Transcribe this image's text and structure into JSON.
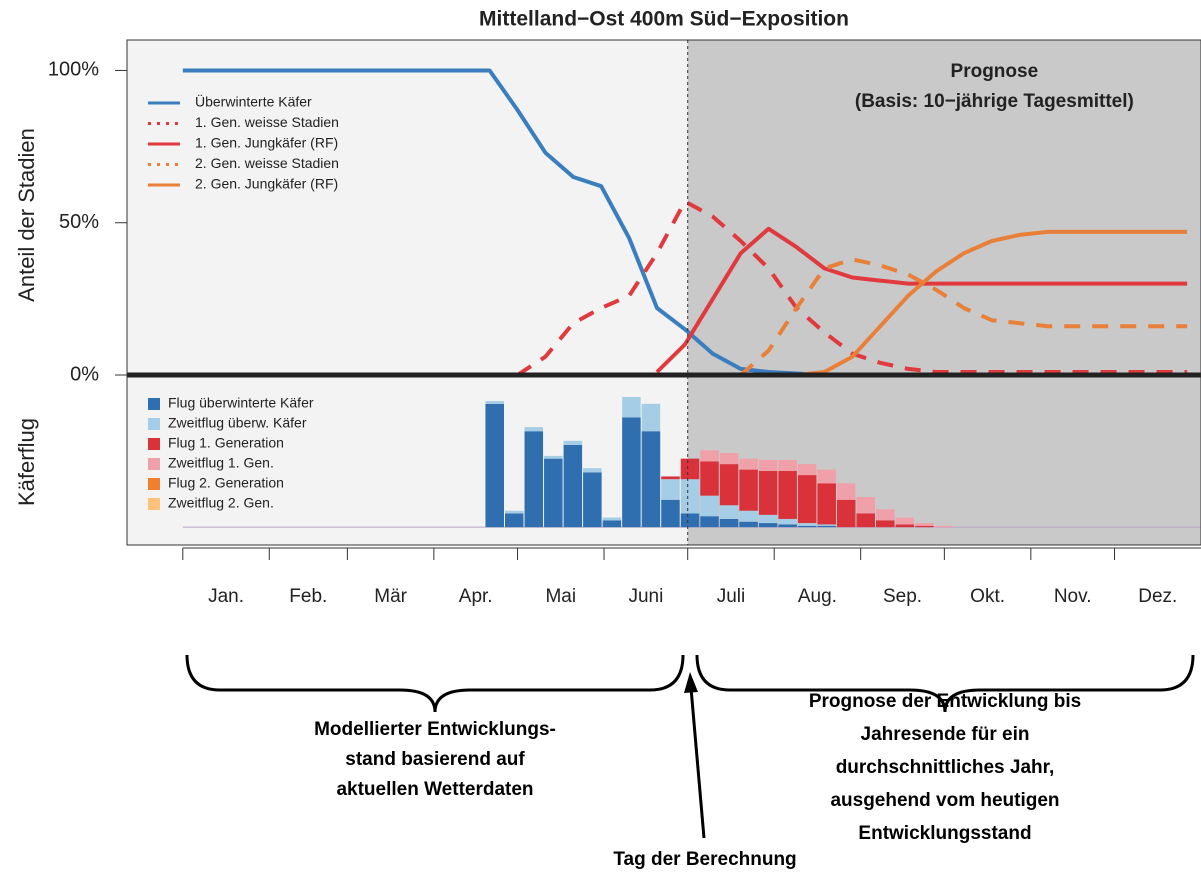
{
  "chart_data": {
    "type": "line",
    "title": "Mittelland−Ost 400m Süd−Exposition",
    "ylabel": "Anteil der Stadien",
    "ylabel2": "Käferflug",
    "forecast_title": "Prognose",
    "forecast_subtitle": "(Basis: 10−jährige Tagesmittel)",
    "today": 181,
    "xlim": [
      -20,
      365
    ],
    "xticks": [
      0,
      31,
      59,
      90,
      120,
      151,
      181,
      212,
      243,
      273,
      304,
      334
    ],
    "categories": [
      "Jan.",
      "Feb.",
      "Mär",
      "Apr.",
      "Mai",
      "Juni",
      "Juli",
      "Aug.",
      "Sep.",
      "Okt.",
      "Nov.",
      "Dez."
    ],
    "ylim": [
      0,
      110
    ],
    "yticks": [
      {
        "value": 0,
        "label": "0%"
      },
      {
        "value": 50,
        "label": "50%"
      },
      {
        "value": 100,
        "label": "100%"
      }
    ],
    "x": [
      0,
      10,
      20,
      30,
      40,
      50,
      60,
      70,
      80,
      90,
      100,
      110,
      120,
      130,
      140,
      150,
      160,
      170,
      180,
      190,
      200,
      210,
      220,
      230,
      240,
      250,
      260,
      270,
      280,
      290,
      300,
      310,
      320,
      330,
      340,
      350,
      360
    ],
    "series": [
      {
        "name": "Überwinterte Käfer",
        "color": "#3a7ebf",
        "style": "solid",
        "values": [
          100,
          100,
          100,
          100,
          100,
          100,
          100,
          100,
          100,
          100,
          100,
          100,
          87,
          73,
          65,
          62,
          45,
          22,
          15,
          7,
          2,
          1,
          0.5,
          0,
          0,
          0,
          0,
          0,
          0,
          0,
          0,
          0,
          0,
          0,
          0,
          0,
          0
        ]
      },
      {
        "name": "1. Gen. weisse Stadien",
        "color": "#e0393e",
        "style": "dashed",
        "values": [
          null,
          null,
          null,
          null,
          null,
          null,
          null,
          null,
          null,
          null,
          null,
          null,
          0,
          6,
          17,
          22,
          26,
          40,
          57,
          52,
          44,
          35,
          22,
          14,
          7,
          4,
          2,
          1,
          1,
          1,
          1,
          1,
          1,
          1,
          1,
          1,
          1
        ]
      },
      {
        "name": "1. Gen. Jungkäfer (RF)",
        "color": "#e0393e",
        "style": "solid",
        "values": [
          null,
          null,
          null,
          null,
          null,
          null,
          null,
          null,
          null,
          null,
          null,
          null,
          null,
          null,
          null,
          null,
          null,
          1,
          10,
          25,
          40,
          48,
          42,
          35,
          32,
          31,
          30,
          30,
          30,
          30,
          30,
          30,
          30,
          30,
          30,
          30,
          30
        ]
      },
      {
        "name": "2. Gen. weisse Stadien",
        "color": "#e8803a",
        "style": "dashed",
        "values": [
          null,
          null,
          null,
          null,
          null,
          null,
          null,
          null,
          null,
          null,
          null,
          null,
          null,
          null,
          null,
          null,
          null,
          null,
          null,
          null,
          0,
          8,
          22,
          35,
          38,
          36,
          33,
          28,
          22,
          18,
          17,
          16,
          16,
          16,
          16,
          16,
          16
        ]
      },
      {
        "name": "2. Gen. Jungkäfer (RF)",
        "color": "#e8803a",
        "style": "solid",
        "values": [
          null,
          null,
          null,
          null,
          null,
          null,
          null,
          null,
          null,
          null,
          null,
          null,
          null,
          null,
          null,
          null,
          null,
          null,
          null,
          null,
          null,
          null,
          0,
          1,
          6,
          16,
          26,
          34,
          40,
          44,
          46,
          47,
          47,
          47,
          47,
          47,
          47
        ]
      }
    ],
    "flight": {
      "type": "bar",
      "ylim": [
        -13,
        111
      ],
      "x": [
        112,
        119,
        126,
        133,
        140,
        147,
        154,
        161,
        168,
        175,
        182,
        189,
        196,
        203,
        210,
        217,
        224,
        231,
        238,
        245,
        252,
        259,
        266,
        273,
        280
      ],
      "series": [
        {
          "name": "Flug überwinterte Käfer",
          "color": "#2f6fb0",
          "values": [
            90,
            10,
            70,
            50,
            60,
            40,
            5,
            80,
            70,
            20,
            10,
            8,
            6,
            4,
            3,
            2,
            1,
            1,
            0,
            0,
            0,
            0,
            0,
            0,
            0
          ]
        },
        {
          "name": "Zweitflug überw. Käfer",
          "color": "#a6cde6",
          "values": [
            2,
            2,
            3,
            2,
            3,
            3,
            2,
            15,
            20,
            15,
            25,
            15,
            10,
            8,
            6,
            4,
            2,
            1,
            0,
            0,
            0,
            0,
            0,
            0,
            0
          ]
        },
        {
          "name": "Flug 1. Generation",
          "color": "#d9323a",
          "values": [
            0,
            0,
            0,
            0,
            0,
            0,
            0,
            0,
            0,
            2,
            15,
            25,
            30,
            30,
            32,
            35,
            35,
            30,
            20,
            10,
            5,
            2,
            1,
            0,
            0
          ]
        },
        {
          "name": "Zweitflug 1. Gen.",
          "color": "#f0a0a8",
          "values": [
            0,
            0,
            0,
            0,
            0,
            0,
            0,
            0,
            0,
            0,
            0,
            8,
            8,
            8,
            8,
            8,
            8,
            10,
            12,
            12,
            8,
            5,
            2,
            1,
            0
          ]
        },
        {
          "name": "Flug 2. Generation",
          "color": "#f08030",
          "values": [
            0,
            0,
            0,
            0,
            0,
            0,
            0,
            0,
            0,
            0,
            0,
            0,
            0,
            0,
            0,
            0,
            0,
            0,
            0,
            0,
            0,
            0,
            0,
            0,
            0
          ]
        },
        {
          "name": "Zweitflug 2. Gen.",
          "color": "#fdc27a",
          "values": [
            0,
            0,
            0,
            0,
            0,
            0,
            0,
            0,
            0,
            0,
            0,
            0,
            0,
            0,
            0,
            0,
            0,
            0,
            0,
            0,
            0,
            0,
            0,
            0,
            0
          ]
        }
      ]
    }
  },
  "annotations": {
    "left": [
      "Modellierter Entwicklungs-",
      "stand basierend auf",
      "aktuellen Wetterdaten"
    ],
    "right": [
      "Prognose der Entwicklung bis",
      "Jahresende für ein",
      "durchschnittliches Jahr,",
      "ausgehend vom heutigen",
      "Entwicklungsstand"
    ],
    "arrow": "Tag der Berechnung"
  }
}
